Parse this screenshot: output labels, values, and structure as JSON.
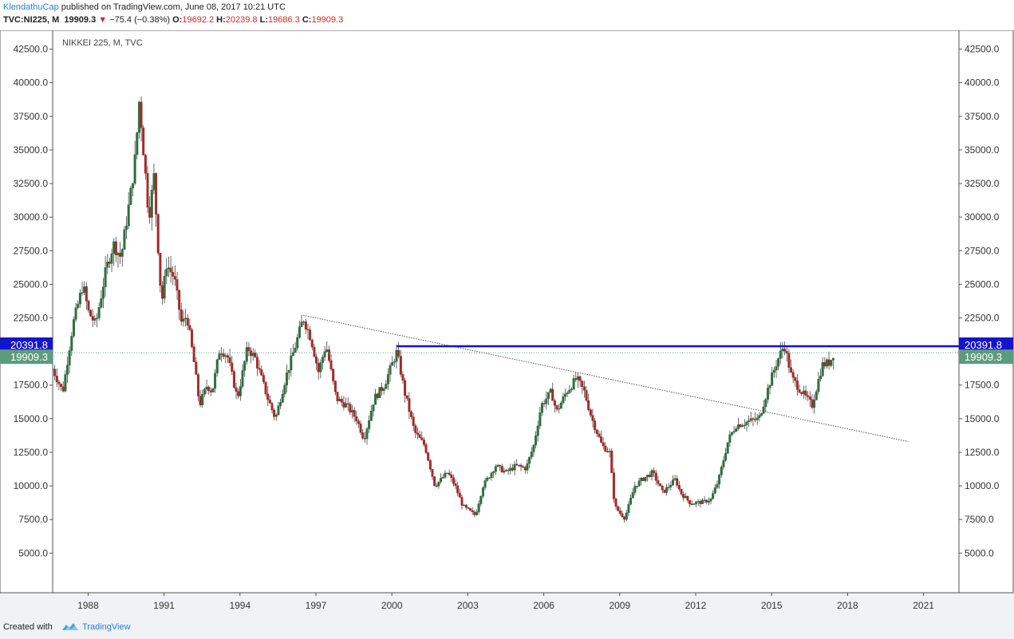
{
  "header": {
    "author": "KlendathuCap",
    "published": "published on TradingView.com, June 08, 2017 10:21 UTC",
    "symbol": "TVC:NI225, M",
    "last": "19909.3",
    "change_arrow": "▼",
    "change": "−75.4 (−0.38%)",
    "o_label": "O:",
    "o_value": "19692.2",
    "h_label": "H:",
    "h_value": "20239.8",
    "l_label": "L:",
    "l_value": "19686.3",
    "c_label": "C:",
    "c_value": "19909.3"
  },
  "footer": {
    "created": "Created with",
    "brand": "TradingView",
    "logo_icon": "tradingview-logo-icon"
  },
  "colors": {
    "up": "#2e6e3e",
    "down": "#a22a2a",
    "resistance": "#1010d8",
    "price_line": "#5aa88a",
    "price_tag": "#5d9b7e",
    "level_tag": "#1414cc",
    "trend": "#555555"
  },
  "chart_data": {
    "type": "candlestick",
    "title": "NIKKEI 225, M, TVC",
    "x_ticks": [
      "1988",
      "1991",
      "1994",
      "1997",
      "2000",
      "2003",
      "2006",
      "2009",
      "2012",
      "2015",
      "2018",
      "2021"
    ],
    "x_tick_values": [
      1988,
      1991,
      1994,
      1997,
      2000,
      2003,
      2006,
      2009,
      2012,
      2015,
      2018,
      2021
    ],
    "y_ticks": [
      "5000.0",
      "7500.0",
      "10000.0",
      "12500.0",
      "15000.0",
      "17500.0",
      "22500.0",
      "25000.0",
      "27500.0",
      "30000.0",
      "32500.0",
      "35000.0",
      "37500.0",
      "40000.0",
      "42500.0"
    ],
    "y_tick_values": [
      5000,
      7500,
      10000,
      12500,
      15000,
      17500,
      22500,
      25000,
      27500,
      30000,
      32500,
      35000,
      37500,
      40000,
      42500
    ],
    "xlim": [
      1986.6,
      2022.4
    ],
    "ylim": [
      2050,
      43900
    ],
    "price_axis": "both sides",
    "resistance_level": 20391.8,
    "resistance_label": "20391.8",
    "resistance_start": 2000.2,
    "last_price": 19909.3,
    "last_price_label": "19909.3",
    "trendline": [
      [
        1996.5,
        22700
      ],
      [
        2020.4,
        13300
      ]
    ],
    "price_path": [
      [
        1986.6,
        18700
      ],
      [
        1987.0,
        17000
      ],
      [
        1987.4,
        22000
      ],
      [
        1987.8,
        25000
      ],
      [
        1988.0,
        23000
      ],
      [
        1988.3,
        22000
      ],
      [
        1988.7,
        26000
      ],
      [
        1989.0,
        28000
      ],
      [
        1989.3,
        27000
      ],
      [
        1989.7,
        32000
      ],
      [
        1989.9,
        35000
      ],
      [
        1990.0,
        38900
      ],
      [
        1990.1,
        37000
      ],
      [
        1990.4,
        30000
      ],
      [
        1990.6,
        33000
      ],
      [
        1990.9,
        23500
      ],
      [
        1991.1,
        26500
      ],
      [
        1991.4,
        25500
      ],
      [
        1991.7,
        22000
      ],
      [
        1991.9,
        22700
      ],
      [
        1992.2,
        19000
      ],
      [
        1992.4,
        16000
      ],
      [
        1992.7,
        17500
      ],
      [
        1992.9,
        17000
      ],
      [
        1993.2,
        20200
      ],
      [
        1993.5,
        19700
      ],
      [
        1993.9,
        16500
      ],
      [
        1994.3,
        20300
      ],
      [
        1994.6,
        19500
      ],
      [
        1995.1,
        16500
      ],
      [
        1995.4,
        15000
      ],
      [
        1995.8,
        18000
      ],
      [
        1996.2,
        20500
      ],
      [
        1996.5,
        22500
      ],
      [
        1996.8,
        21000
      ],
      [
        1997.1,
        18500
      ],
      [
        1997.4,
        20500
      ],
      [
        1997.8,
        16500
      ],
      [
        1998.2,
        16000
      ],
      [
        1998.6,
        15000
      ],
      [
        1998.9,
        13500
      ],
      [
        1999.3,
        16500
      ],
      [
        1999.7,
        17500
      ],
      [
        2000.2,
        20000
      ],
      [
        2000.5,
        17000
      ],
      [
        2000.9,
        14000
      ],
      [
        2001.3,
        13000
      ],
      [
        2001.7,
        10000
      ],
      [
        2002.2,
        11000
      ],
      [
        2002.5,
        10000
      ],
      [
        2002.8,
        8500
      ],
      [
        2003.3,
        7800
      ],
      [
        2003.6,
        10000
      ],
      [
        2004.1,
        11500
      ],
      [
        2004.5,
        11000
      ],
      [
        2004.9,
        11500
      ],
      [
        2005.3,
        11300
      ],
      [
        2005.6,
        13000
      ],
      [
        2005.9,
        16000
      ],
      [
        2006.3,
        17000
      ],
      [
        2006.5,
        15500
      ],
      [
        2006.9,
        17000
      ],
      [
        2007.3,
        18000
      ],
      [
        2007.6,
        17000
      ],
      [
        2007.9,
        15000
      ],
      [
        2008.3,
        13000
      ],
      [
        2008.6,
        12500
      ],
      [
        2008.8,
        8500
      ],
      [
        2009.0,
        8000
      ],
      [
        2009.2,
        7600
      ],
      [
        2009.6,
        10000
      ],
      [
        2009.9,
        10500
      ],
      [
        2010.3,
        11000
      ],
      [
        2010.7,
        9500
      ],
      [
        2011.2,
        10500
      ],
      [
        2011.4,
        9500
      ],
      [
        2011.8,
        8700
      ],
      [
        2012.3,
        8800
      ],
      [
        2012.6,
        9000
      ],
      [
        2012.9,
        10400
      ],
      [
        2013.3,
        13500
      ],
      [
        2013.6,
        14500
      ],
      [
        2014.1,
        14800
      ],
      [
        2014.5,
        15000
      ],
      [
        2014.9,
        17500
      ],
      [
        2015.2,
        19200
      ],
      [
        2015.5,
        20500
      ],
      [
        2015.8,
        18000
      ],
      [
        2016.0,
        17500
      ],
      [
        2016.3,
        16700
      ],
      [
        2016.6,
        16000
      ],
      [
        2016.8,
        17500
      ],
      [
        2017.0,
        19000
      ],
      [
        2017.3,
        19200
      ],
      [
        2017.45,
        19909.3
      ]
    ]
  }
}
